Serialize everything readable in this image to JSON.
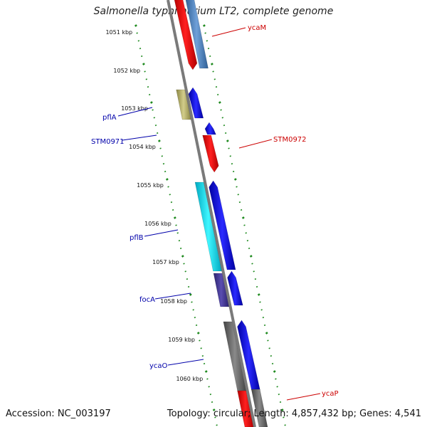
{
  "title": "Salmonella typhimurium LT2, complete genome",
  "footer": {
    "accession": "Accession: NC_003197",
    "summary": "Topology: circular; Length: 4,857,432 bp; Genes: 4,541"
  },
  "colors": {
    "red": "#ff1a1a",
    "steelblue": "#5a8fc8",
    "olive": "#bdb76b",
    "blue": "#1515ee",
    "cyan": "#00e8ff",
    "slate": "#4a3d9a",
    "gray": "#6e6e6e",
    "axis": "#888888",
    "ticks": "#1e8a1e",
    "label_red": "#cc0000",
    "label_blue": "#0000aa"
  },
  "kbp_labels": [
    "1051 kbp",
    "1052 kbp",
    "1053 kbp",
    "1054 kbp",
    "1055 kbp",
    "1056 kbp",
    "1057 kbp",
    "1058 kbp",
    "1059 kbp",
    "1060 kbp"
  ],
  "gene_labels": {
    "ycaM": "ycaM",
    "pflA": "pflA",
    "STM0971": "STM0971",
    "STM0972": "STM0972",
    "pflB": "pflB",
    "focA": "focA",
    "ycaO": "ycaO",
    "ycaP": "ycaP"
  }
}
